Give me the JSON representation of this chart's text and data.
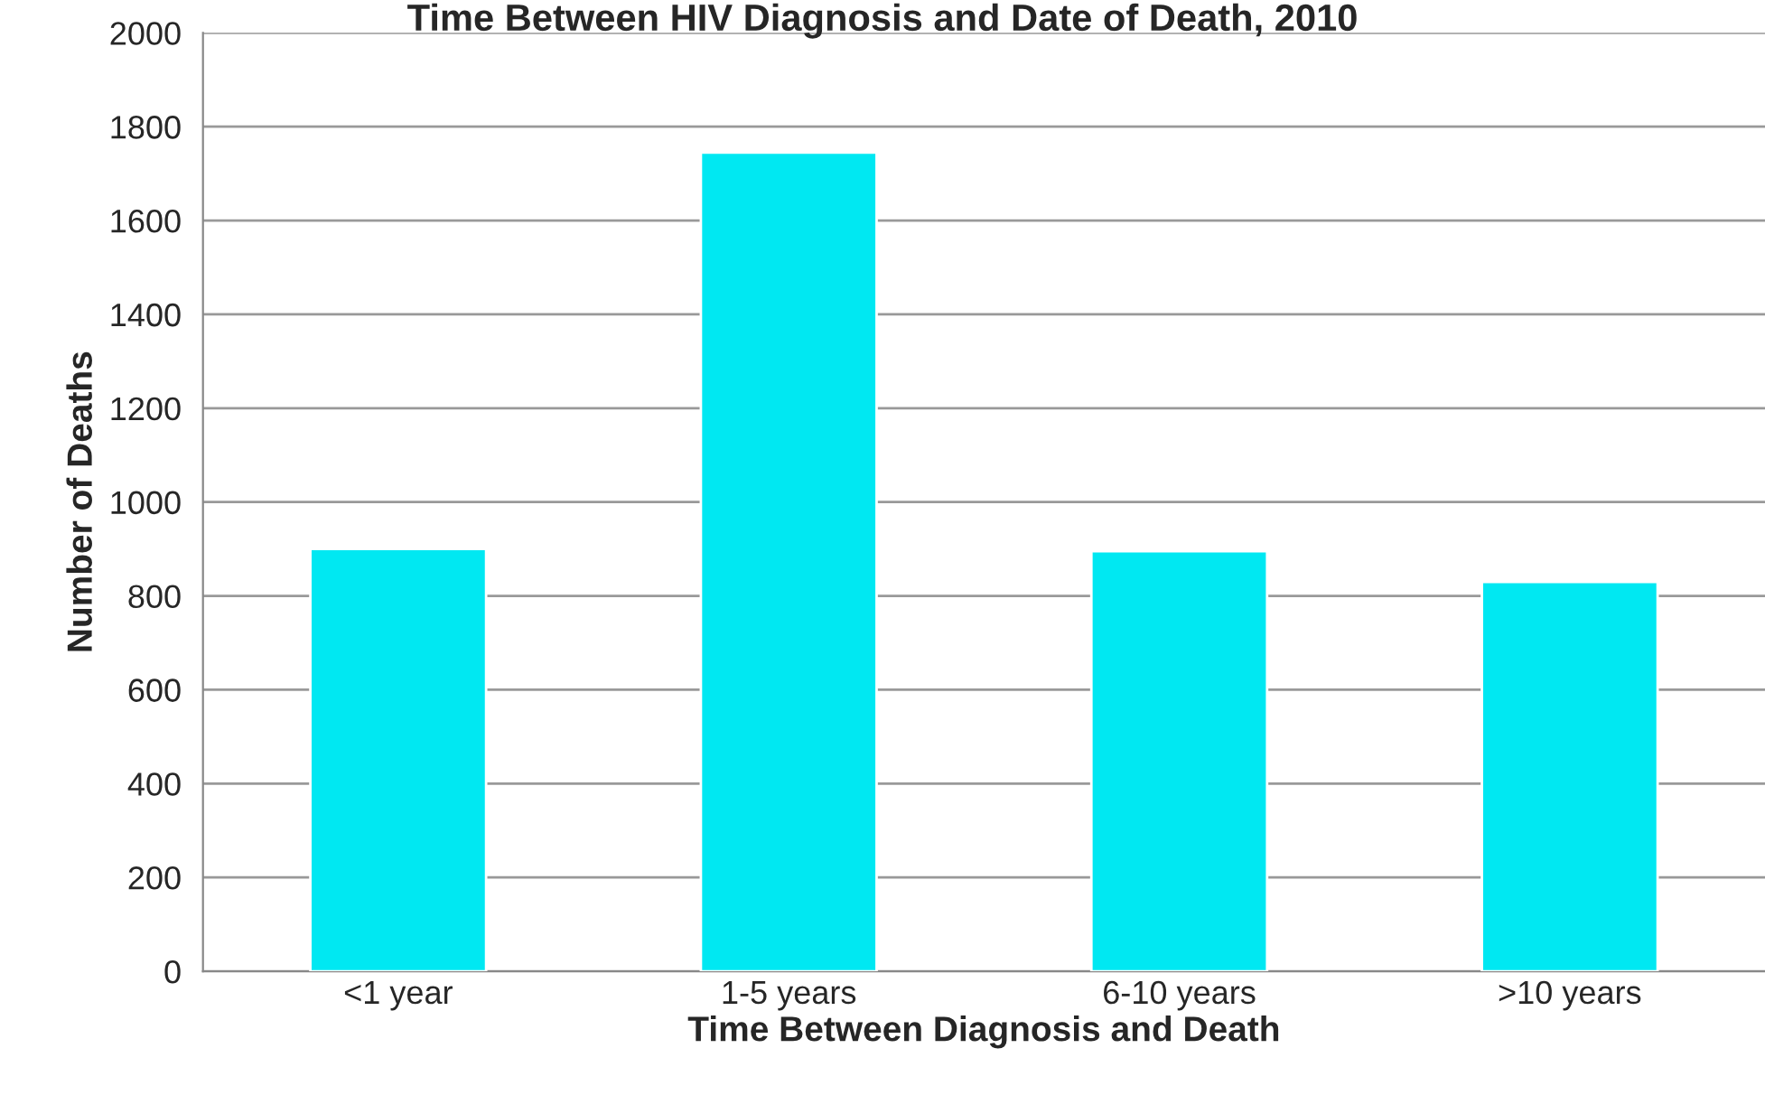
{
  "chart_data": {
    "type": "bar",
    "title": "Time Between HIV Diagnosis and Date of Death, 2010",
    "xlabel": "Time Between Diagnosis and Death",
    "ylabel": "Number of Deaths",
    "categories": [
      "<1 year",
      "1-5 years",
      "6-10 years",
      ">10 years"
    ],
    "values": [
      900,
      1745,
      895,
      830
    ],
    "color": "#00e8f2",
    "ylim": [
      0,
      2000
    ],
    "yticks": [
      0,
      200,
      400,
      600,
      800,
      1000,
      1200,
      1400,
      1600,
      1800,
      2000
    ],
    "grid": "y"
  }
}
